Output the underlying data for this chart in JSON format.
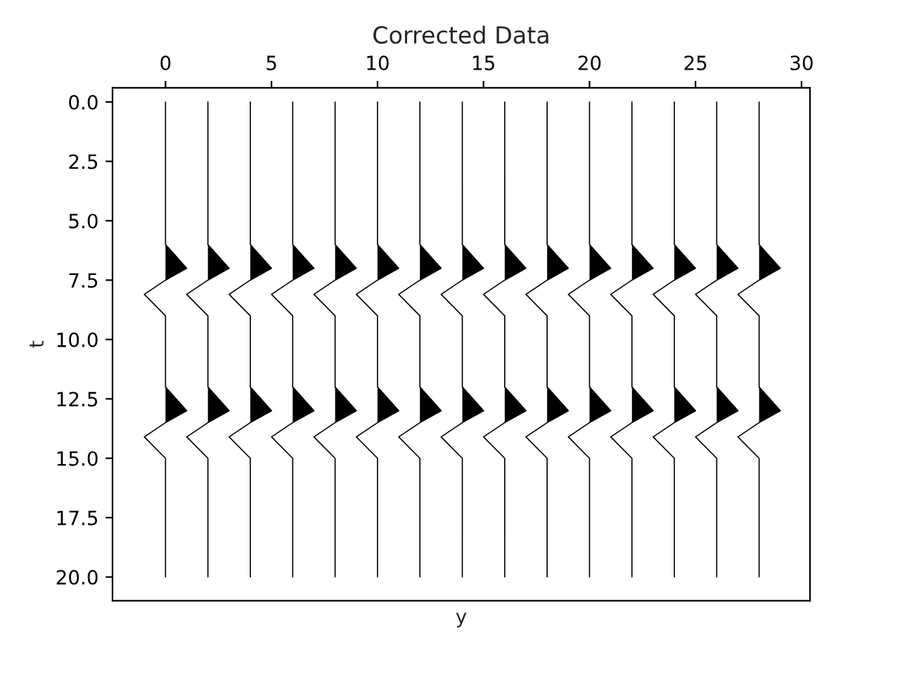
{
  "chart_data": {
    "type": "line",
    "title": "Corrected Data",
    "xlabel": "y",
    "ylabel": "t",
    "xlim": [
      -2.5,
      30.4
    ],
    "xticks": [
      0,
      5,
      10,
      15,
      20,
      25,
      30
    ],
    "ylim": [
      21,
      -0.6
    ],
    "yticks": [
      {
        "value": 0,
        "label": "0.0"
      },
      {
        "value": 2.5,
        "label": "2.5"
      },
      {
        "value": 5,
        "label": "5.0"
      },
      {
        "value": 7.5,
        "label": "7.5"
      },
      {
        "value": 10,
        "label": "10.0"
      },
      {
        "value": 12.5,
        "label": "12.5"
      },
      {
        "value": 15,
        "label": "15.0"
      },
      {
        "value": 17.5,
        "label": "17.5"
      },
      {
        "value": 20,
        "label": "20.0"
      }
    ],
    "grid": false,
    "legend": false,
    "series": [
      {
        "color": "#000000",
        "x": [
          0,
          0,
          1,
          0,
          -1,
          0,
          0,
          1,
          0,
          -1,
          0,
          0
        ],
        "values": [
          0,
          6,
          7,
          7.5,
          8.1,
          9,
          12,
          13,
          13.5,
          14.1,
          15,
          20
        ]
      },
      {
        "color": "#000000",
        "x": [
          2,
          2,
          3,
          2,
          1,
          2,
          2,
          3,
          2,
          1,
          2,
          2
        ],
        "values": [
          0,
          6,
          7,
          7.5,
          8.1,
          9,
          12,
          13,
          13.5,
          14.1,
          15,
          20
        ]
      },
      {
        "color": "#000000",
        "x": [
          4,
          4,
          5,
          4,
          3,
          4,
          4,
          5,
          4,
          3,
          4,
          4
        ],
        "values": [
          0,
          6,
          7,
          7.5,
          8.1,
          9,
          12,
          13,
          13.5,
          14.1,
          15,
          20
        ]
      },
      {
        "color": "#000000",
        "x": [
          6,
          6,
          7,
          6,
          5,
          6,
          6,
          7,
          6,
          5,
          6,
          6
        ],
        "values": [
          0,
          6,
          7,
          7.5,
          8.1,
          9,
          12,
          13,
          13.5,
          14.1,
          15,
          20
        ]
      },
      {
        "color": "#000000",
        "x": [
          8,
          8,
          9,
          8,
          7,
          8,
          8,
          9,
          8,
          7,
          8,
          8
        ],
        "values": [
          0,
          6,
          7,
          7.5,
          8.1,
          9,
          12,
          13,
          13.5,
          14.1,
          15,
          20
        ]
      },
      {
        "color": "#000000",
        "x": [
          10,
          10,
          11,
          10,
          9,
          10,
          10,
          11,
          10,
          9,
          10,
          10
        ],
        "values": [
          0,
          6,
          7,
          7.5,
          8.1,
          9,
          12,
          13,
          13.5,
          14.1,
          15,
          20
        ]
      },
      {
        "color": "#000000",
        "x": [
          12,
          12,
          13,
          12,
          11,
          12,
          12,
          13,
          12,
          11,
          12,
          12
        ],
        "values": [
          0,
          6,
          7,
          7.5,
          8.1,
          9,
          12,
          13,
          13.5,
          14.1,
          15,
          20
        ]
      },
      {
        "color": "#000000",
        "x": [
          14,
          14,
          15,
          14,
          13,
          14,
          14,
          15,
          14,
          13,
          14,
          14
        ],
        "values": [
          0,
          6,
          7,
          7.5,
          8.1,
          9,
          12,
          13,
          13.5,
          14.1,
          15,
          20
        ]
      },
      {
        "color": "#000000",
        "x": [
          16,
          16,
          17,
          16,
          15,
          16,
          16,
          17,
          16,
          15,
          16,
          16
        ],
        "values": [
          0,
          6,
          7,
          7.5,
          8.1,
          9,
          12,
          13,
          13.5,
          14.1,
          15,
          20
        ]
      },
      {
        "color": "#000000",
        "x": [
          18,
          18,
          19,
          18,
          17,
          18,
          18,
          19,
          18,
          17,
          18,
          18
        ],
        "values": [
          0,
          6,
          7,
          7.5,
          8.1,
          9,
          12,
          13,
          13.5,
          14.1,
          15,
          20
        ]
      },
      {
        "color": "#000000",
        "x": [
          20,
          20,
          21,
          20,
          19,
          20,
          20,
          21,
          20,
          19,
          20,
          20
        ],
        "values": [
          0,
          6,
          7,
          7.5,
          8.1,
          9,
          12,
          13,
          13.5,
          14.1,
          15,
          20
        ]
      },
      {
        "color": "#000000",
        "x": [
          22,
          22,
          23,
          22,
          21,
          22,
          22,
          23,
          22,
          21,
          22,
          22
        ],
        "values": [
          0,
          6,
          7,
          7.5,
          8.1,
          9,
          12,
          13,
          13.5,
          14.1,
          15,
          20
        ]
      },
      {
        "color": "#000000",
        "x": [
          24,
          24,
          25,
          24,
          23,
          24,
          24,
          25,
          24,
          23,
          24,
          24
        ],
        "values": [
          0,
          6,
          7,
          7.5,
          8.1,
          9,
          12,
          13,
          13.5,
          14.1,
          15,
          20
        ]
      },
      {
        "color": "#000000",
        "x": [
          26,
          26,
          27,
          26,
          25,
          26,
          26,
          27,
          26,
          25,
          26,
          26
        ],
        "values": [
          0,
          6,
          7,
          7.5,
          8.1,
          9,
          12,
          13,
          13.5,
          14.1,
          15,
          20
        ]
      },
      {
        "color": "#000000",
        "x": [
          28,
          28,
          29,
          28,
          27,
          28,
          28,
          29,
          28,
          27,
          28,
          28
        ],
        "values": [
          0,
          6,
          7,
          7.5,
          8.1,
          9,
          12,
          13,
          13.5,
          14.1,
          15,
          20
        ]
      },
      {
        "type": "area",
        "color": "#000000",
        "x": [
          0,
          1,
          0,
          null,
          0,
          1,
          0
        ],
        "values": [
          6,
          7,
          7.5,
          null,
          12,
          13,
          13.5
        ]
      },
      {
        "type": "area",
        "color": "#000000",
        "x": [
          2,
          3,
          2,
          null,
          2,
          3,
          2
        ],
        "values": [
          6,
          7,
          7.5,
          null,
          12,
          13,
          13.5
        ]
      },
      {
        "type": "area",
        "color": "#000000",
        "x": [
          4,
          5,
          4,
          null,
          4,
          5,
          4
        ],
        "values": [
          6,
          7,
          7.5,
          null,
          12,
          13,
          13.5
        ]
      },
      {
        "type": "area",
        "color": "#000000",
        "x": [
          6,
          7,
          6,
          null,
          6,
          7,
          6
        ],
        "values": [
          6,
          7,
          7.5,
          null,
          12,
          13,
          13.5
        ]
      },
      {
        "type": "area",
        "color": "#000000",
        "x": [
          8,
          9,
          8,
          null,
          8,
          9,
          8
        ],
        "values": [
          6,
          7,
          7.5,
          null,
          12,
          13,
          13.5
        ]
      },
      {
        "type": "area",
        "color": "#000000",
        "x": [
          10,
          11,
          10,
          null,
          10,
          11,
          10
        ],
        "values": [
          6,
          7,
          7.5,
          null,
          12,
          13,
          13.5
        ]
      },
      {
        "type": "area",
        "color": "#000000",
        "x": [
          12,
          13,
          12,
          null,
          12,
          13,
          12
        ],
        "values": [
          6,
          7,
          7.5,
          null,
          12,
          13,
          13.5
        ]
      },
      {
        "type": "area",
        "color": "#000000",
        "x": [
          14,
          15,
          14,
          null,
          14,
          15,
          14
        ],
        "values": [
          6,
          7,
          7.5,
          null,
          12,
          13,
          13.5
        ]
      },
      {
        "type": "area",
        "color": "#000000",
        "x": [
          16,
          17,
          16,
          null,
          16,
          17,
          16
        ],
        "values": [
          6,
          7,
          7.5,
          null,
          12,
          13,
          13.5
        ]
      },
      {
        "type": "area",
        "color": "#000000",
        "x": [
          18,
          19,
          18,
          null,
          18,
          19,
          18
        ],
        "values": [
          6,
          7,
          7.5,
          null,
          12,
          13,
          13.5
        ]
      },
      {
        "type": "area",
        "color": "#000000",
        "x": [
          20,
          21,
          20,
          null,
          20,
          21,
          20
        ],
        "values": [
          6,
          7,
          7.5,
          null,
          12,
          13,
          13.5
        ]
      },
      {
        "type": "area",
        "color": "#000000",
        "x": [
          22,
          23,
          22,
          null,
          22,
          23,
          22
        ],
        "values": [
          6,
          7,
          7.5,
          null,
          12,
          13,
          13.5
        ]
      },
      {
        "type": "area",
        "color": "#000000",
        "x": [
          24,
          25,
          24,
          null,
          24,
          25,
          24
        ],
        "values": [
          6,
          7,
          7.5,
          null,
          12,
          13,
          13.5
        ]
      },
      {
        "type": "area",
        "color": "#000000",
        "x": [
          26,
          27,
          26,
          null,
          26,
          27,
          26
        ],
        "values": [
          6,
          7,
          7.5,
          null,
          12,
          13,
          13.5
        ]
      },
      {
        "type": "area",
        "color": "#000000",
        "x": [
          28,
          29,
          28,
          null,
          28,
          29,
          28
        ],
        "values": [
          6,
          7,
          7.5,
          null,
          12,
          13,
          13.5
        ]
      }
    ]
  }
}
